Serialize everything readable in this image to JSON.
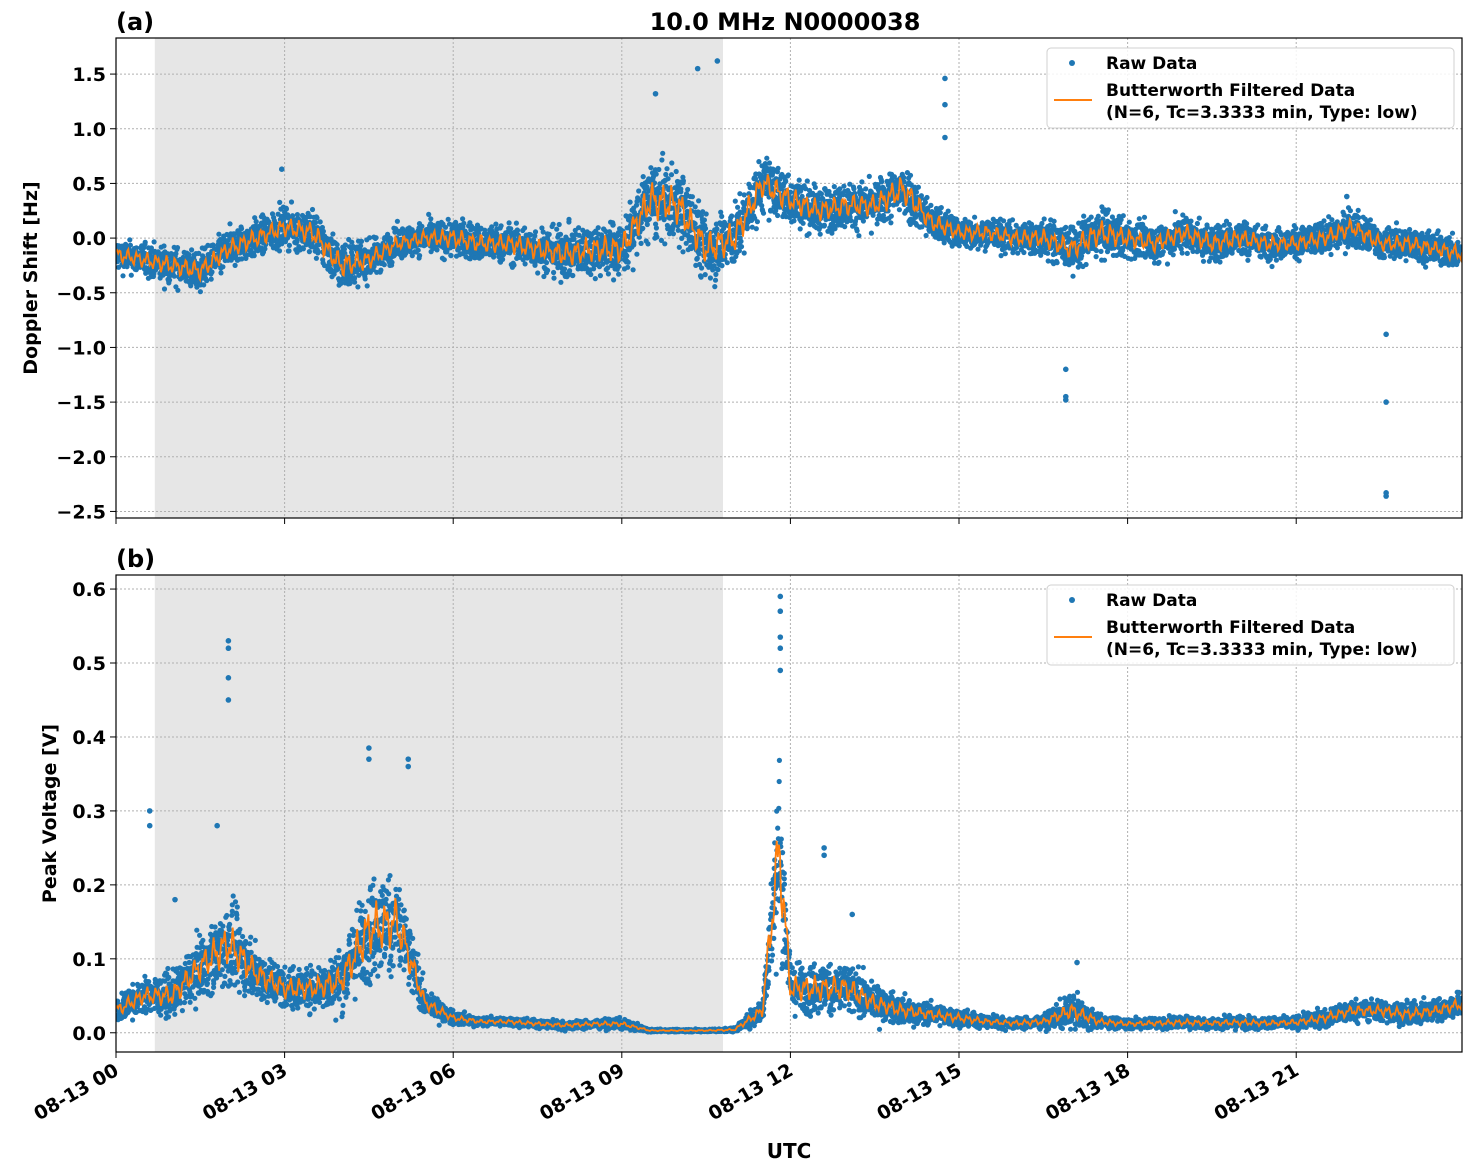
{
  "title": "10.0 MHz N0000038",
  "xlabel": "UTC",
  "legend": {
    "raw": "Raw Data",
    "filtered_line1": "Butterworth Filtered Data",
    "filtered_line2": "(N=6, Tc=3.3333 min, Type: low)",
    "placement": "top-right"
  },
  "colors": {
    "raw": "#1f77b4",
    "filtered": "#ff7f0e",
    "shade": "#e6e6e6"
  },
  "chart_data": [
    {
      "type": "scatter",
      "panel_label": "(a)",
      "ylabel": "Doppler Shift [Hz]",
      "xlim_hours": [
        0,
        23.95
      ],
      "ylim": [
        -2.56,
        1.83
      ],
      "x_ticks": [
        0,
        3,
        6,
        9,
        12,
        15,
        18,
        21
      ],
      "x_tick_labels": [
        "08-13 00",
        "08-13 03",
        "08-13 06",
        "08-13 09",
        "08-13 12",
        "08-13 15",
        "08-13 18",
        "08-13 21"
      ],
      "y_ticks": [
        1.5,
        1.0,
        0.5,
        0.0,
        -0.5,
        -1.0,
        -1.5,
        -2.0,
        -2.5
      ],
      "y_tick_labels": [
        "1.5",
        "1.0",
        "0.5",
        "0.0",
        "−0.5",
        "−1.0",
        "−1.5",
        "−2.0",
        "−2.5"
      ],
      "shaded_span_hours": [
        0.69,
        10.8
      ],
      "x_hours": [
        0,
        0.5,
        1,
        1.5,
        2,
        2.5,
        3,
        3.5,
        4,
        4.5,
        5,
        5.5,
        6,
        6.5,
        7,
        7.5,
        8,
        8.5,
        9,
        9.5,
        10,
        10.5,
        11,
        11.5,
        12,
        12.5,
        13,
        13.5,
        14,
        14.5,
        15,
        15.5,
        16,
        16.5,
        17,
        17.5,
        18,
        18.5,
        19,
        19.5,
        20,
        20.5,
        21,
        21.5,
        22,
        22.5,
        23,
        23.5,
        24
      ],
      "filtered": [
        -0.15,
        -0.2,
        -0.25,
        -0.3,
        -0.1,
        0.0,
        0.1,
        0.05,
        -0.25,
        -0.2,
        -0.05,
        0.0,
        0.0,
        -0.05,
        -0.05,
        -0.1,
        -0.15,
        -0.1,
        -0.1,
        0.35,
        0.3,
        -0.1,
        0.0,
        0.5,
        0.35,
        0.25,
        0.3,
        0.3,
        0.45,
        0.15,
        0.05,
        0.05,
        0.0,
        0.0,
        -0.1,
        0.05,
        0.0,
        -0.05,
        0.05,
        -0.05,
        0.0,
        -0.05,
        -0.05,
        0.0,
        0.1,
        -0.05,
        -0.05,
        -0.1,
        -0.15
      ],
      "raw_spread": [
        0.25,
        0.25,
        0.3,
        0.3,
        0.3,
        0.3,
        0.3,
        0.35,
        0.4,
        0.3,
        0.25,
        0.25,
        0.3,
        0.3,
        0.3,
        0.35,
        0.4,
        0.4,
        0.45,
        0.6,
        0.6,
        0.55,
        0.5,
        0.45,
        0.4,
        0.35,
        0.35,
        0.35,
        0.45,
        0.3,
        0.25,
        0.25,
        0.25,
        0.3,
        0.35,
        0.4,
        0.3,
        0.3,
        0.3,
        0.3,
        0.3,
        0.25,
        0.25,
        0.25,
        0.3,
        0.25,
        0.25,
        0.25,
        0.25
      ],
      "outliers": [
        [
          2.95,
          0.63
        ],
        [
          9.6,
          1.32
        ],
        [
          10.35,
          1.55
        ],
        [
          10.7,
          1.62
        ],
        [
          14.75,
          1.46
        ],
        [
          14.75,
          1.22
        ],
        [
          14.75,
          0.92
        ],
        [
          16.9,
          -1.2
        ],
        [
          16.9,
          -1.48
        ],
        [
          16.9,
          -1.45
        ],
        [
          22.6,
          -0.88
        ],
        [
          22.6,
          -1.5
        ],
        [
          22.6,
          -2.33
        ],
        [
          22.6,
          -2.36
        ],
        [
          21.9,
          0.38
        ]
      ]
    },
    {
      "type": "scatter",
      "panel_label": "(b)",
      "ylabel": "Peak Voltage [V]",
      "xlim_hours": [
        0,
        23.95
      ],
      "ylim": [
        -0.026,
        0.619
      ],
      "x_ticks": [
        0,
        3,
        6,
        9,
        12,
        15,
        18,
        21
      ],
      "x_tick_labels": [
        "08-13 00",
        "08-13 03",
        "08-13 06",
        "08-13 09",
        "08-13 12",
        "08-13 15",
        "08-13 18",
        "08-13 21"
      ],
      "y_ticks": [
        0.6,
        0.5,
        0.4,
        0.3,
        0.2,
        0.1,
        0.0
      ],
      "y_tick_labels": [
        "0.6",
        "0.5",
        "0.4",
        "0.3",
        "0.2",
        "0.1",
        "0.0"
      ],
      "shaded_span_hours": [
        0.69,
        10.8
      ],
      "x_hours": [
        0,
        0.5,
        1,
        1.5,
        2,
        2.5,
        3,
        3.5,
        4,
        4.5,
        5,
        5.5,
        6,
        6.5,
        7,
        7.5,
        8,
        8.5,
        9,
        9.5,
        10,
        10.5,
        11,
        11.5,
        11.8,
        12,
        12.5,
        13,
        13.5,
        14,
        14.5,
        15,
        15.5,
        16,
        16.5,
        17,
        17.5,
        18,
        18.5,
        19,
        19.5,
        20,
        20.5,
        21,
        21.5,
        22,
        22.5,
        23,
        23.5,
        24
      ],
      "filtered": [
        0.03,
        0.05,
        0.05,
        0.09,
        0.12,
        0.08,
        0.06,
        0.06,
        0.07,
        0.14,
        0.15,
        0.04,
        0.02,
        0.015,
        0.015,
        0.012,
        0.01,
        0.012,
        0.012,
        0.003,
        0.003,
        0.003,
        0.004,
        0.03,
        0.25,
        0.06,
        0.06,
        0.06,
        0.04,
        0.03,
        0.025,
        0.02,
        0.015,
        0.013,
        0.015,
        0.03,
        0.015,
        0.012,
        0.013,
        0.014,
        0.013,
        0.014,
        0.013,
        0.014,
        0.02,
        0.03,
        0.03,
        0.025,
        0.03,
        0.04
      ],
      "raw_spread": [
        0.03,
        0.04,
        0.05,
        0.07,
        0.1,
        0.06,
        0.05,
        0.05,
        0.07,
        0.12,
        0.12,
        0.03,
        0.015,
        0.01,
        0.01,
        0.01,
        0.01,
        0.01,
        0.012,
        0.003,
        0.003,
        0.003,
        0.005,
        0.03,
        0.2,
        0.06,
        0.06,
        0.06,
        0.04,
        0.03,
        0.025,
        0.02,
        0.015,
        0.013,
        0.015,
        0.04,
        0.015,
        0.012,
        0.013,
        0.015,
        0.013,
        0.015,
        0.013,
        0.015,
        0.02,
        0.025,
        0.025,
        0.025,
        0.025,
        0.03
      ],
      "outliers": [
        [
          0.6,
          0.3
        ],
        [
          0.6,
          0.28
        ],
        [
          1.05,
          0.18
        ],
        [
          2.0,
          0.53
        ],
        [
          2.0,
          0.52
        ],
        [
          2.0,
          0.48
        ],
        [
          2.0,
          0.45
        ],
        [
          1.8,
          0.28
        ],
        [
          4.5,
          0.385
        ],
        [
          4.5,
          0.37
        ],
        [
          5.2,
          0.37
        ],
        [
          5.2,
          0.36
        ],
        [
          11.82,
          0.59
        ],
        [
          11.82,
          0.57
        ],
        [
          11.82,
          0.535
        ],
        [
          11.82,
          0.52
        ],
        [
          11.82,
          0.49
        ],
        [
          12.6,
          0.25
        ],
        [
          12.6,
          0.24
        ],
        [
          13.1,
          0.16
        ],
        [
          17.1,
          0.095
        ]
      ]
    }
  ]
}
